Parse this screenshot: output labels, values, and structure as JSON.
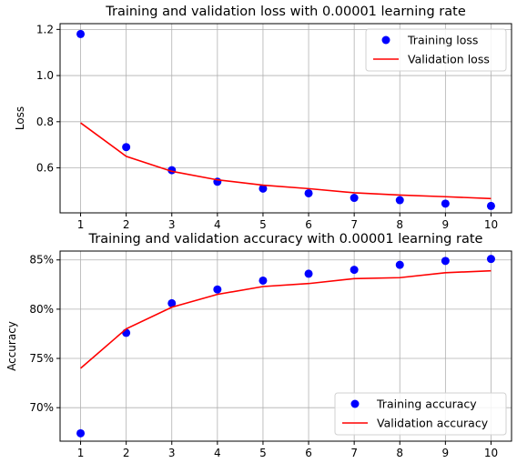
{
  "chart_data": [
    {
      "type": "line",
      "title": "Training and validation loss with 0.00001 learning rate",
      "xlabel": "",
      "ylabel": "Loss",
      "x": [
        1,
        2,
        3,
        4,
        5,
        6,
        7,
        8,
        9,
        10
      ],
      "xticks": [
        "1",
        "2",
        "3",
        "4",
        "5",
        "6",
        "7",
        "8",
        "9",
        "10"
      ],
      "xlim": [
        0.55,
        10.45
      ],
      "ylim": [
        0.405,
        1.225
      ],
      "yticks": [
        0.6,
        0.8,
        1.0,
        1.2
      ],
      "ytick_labels": [
        "0.6",
        "0.8",
        "1.0",
        "1.2"
      ],
      "grid": true,
      "legend_position": "upper right",
      "series": [
        {
          "name": "Training loss",
          "style": "markers",
          "color": "#0000ff",
          "values": [
            1.18,
            0.69,
            0.59,
            0.54,
            0.51,
            0.49,
            0.47,
            0.46,
            0.445,
            0.435
          ]
        },
        {
          "name": "Validation loss",
          "style": "line",
          "color": "#ff0000",
          "values": [
            0.795,
            0.65,
            0.585,
            0.548,
            0.525,
            0.51,
            0.492,
            0.482,
            0.475,
            0.467
          ]
        }
      ]
    },
    {
      "type": "line",
      "title": "Training and validation accuracy with 0.00001 learning rate",
      "xlabel": "",
      "ylabel": "Accuracy",
      "x": [
        1,
        2,
        3,
        4,
        5,
        6,
        7,
        8,
        9,
        10
      ],
      "xticks": [
        "1",
        "2",
        "3",
        "4",
        "5",
        "6",
        "7",
        "8",
        "9",
        "10"
      ],
      "xlim": [
        0.55,
        10.45
      ],
      "ylim": [
        0.666,
        0.859
      ],
      "yticks": [
        0.7,
        0.75,
        0.8,
        0.85
      ],
      "ytick_labels": [
        "70%",
        "75%",
        "80%",
        "85%"
      ],
      "grid": true,
      "legend_position": "lower right",
      "series": [
        {
          "name": "Training accuracy",
          "style": "markers",
          "color": "#0000ff",
          "values": [
            0.674,
            0.776,
            0.806,
            0.82,
            0.829,
            0.836,
            0.84,
            0.845,
            0.849,
            0.851
          ]
        },
        {
          "name": "Validation accuracy",
          "style": "line",
          "color": "#ff0000",
          "values": [
            0.74,
            0.78,
            0.802,
            0.815,
            0.823,
            0.826,
            0.831,
            0.832,
            0.837,
            0.839
          ]
        }
      ]
    }
  ]
}
